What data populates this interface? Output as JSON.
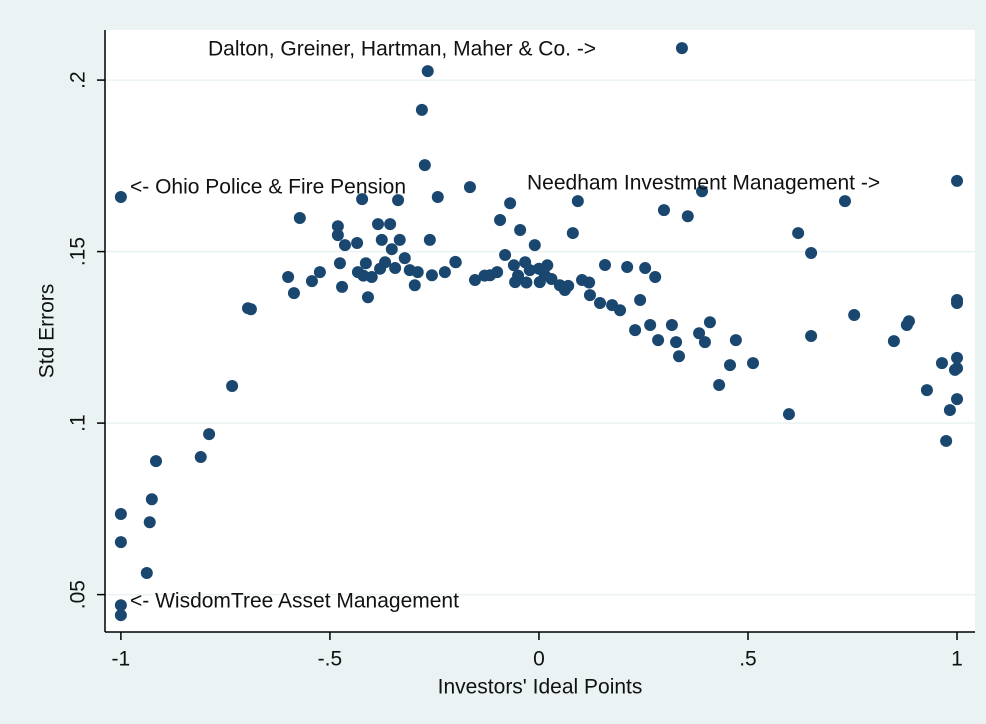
{
  "chart_data": {
    "type": "scatter",
    "x_label": "Investors' Ideal Points",
    "y_label": "Std Errors",
    "annotations": [
      "Dalton, Greiner, Hartman, Maher & Co. ->",
      "<- Ohio Police & Fire Pension",
      "Needham Investment Management ->",
      "<- WisdomTree Asset Management"
    ],
    "color": "#1a476f",
    "grid": true,
    "xlim": [
      -1.038,
      1.043
    ],
    "ylim": [
      0.0391,
      0.2146
    ],
    "xticks": [
      -1,
      {
        "value": -0.5,
        "label": "-.5"
      },
      0,
      {
        "value": 0.5,
        "label": ".5"
      },
      1
    ],
    "yticks": [
      {
        "value": 0.05,
        "label": ".05"
      },
      {
        "value": 0.1,
        "label": ".1"
      },
      {
        "value": 0.15,
        "label": ".15"
      },
      {
        "value": 0.2,
        "label": ".2"
      }
    ],
    "x": [
      -1,
      -1,
      -1,
      -1,
      -1,
      -0.938,
      -0.931,
      -0.926,
      -0.916,
      -0.809,
      -0.789,
      -0.734,
      -0.696,
      -0.689,
      -0.6,
      -0.586,
      -0.572,
      -0.543,
      -0.524,
      -0.481,
      -0.481,
      -0.476,
      -0.471,
      -0.464,
      -0.435,
      -0.433,
      -0.423,
      -0.414,
      -0.409,
      -0.4,
      -0.385,
      -0.376,
      -0.368,
      -0.356,
      -0.352,
      -0.344,
      -0.337,
      -0.333,
      -0.321,
      -0.309,
      -0.297,
      -0.28,
      -0.273,
      -0.266,
      -0.261,
      -0.256,
      -0.242,
      -0.225,
      -0.199,
      -0.165,
      -0.153,
      -0.117,
      -0.093,
      -0.081,
      -0.069,
      -0.057,
      -0.045,
      -0.033,
      -0.022,
      -0.01,
      0.002,
      0.014,
      0.05,
      0.062,
      0.081,
      0.093,
      0.103,
      0.122,
      0.146,
      0.158,
      0.175,
      0.194,
      0.211,
      0.23,
      0.242,
      0.254,
      0.266,
      0.278,
      0.285,
      0.299,
      0.318,
      0.328,
      0.335,
      0.342,
      0.356,
      0.383,
      0.39,
      0.397,
      0.409,
      0.431,
      0.457,
      0.471,
      0.512,
      0.598,
      0.62,
      0.651,
      0.651,
      0.732,
      0.754,
      0.849,
      0.88,
      0.885,
      0.928,
      0.964,
      0.974,
      0.983,
      0.995,
      1,
      1,
      1,
      1,
      1,
      1,
      -0.05,
      0,
      0.03,
      -0.1,
      0.07,
      -0.38,
      -0.2,
      -0.13,
      -0.03,
      0.02,
      -0.42,
      -0.29,
      -0.06,
      0.12
    ],
    "values": [
      0.1659,
      0.0735,
      0.0653,
      0.0469,
      0.044,
      0.0563,
      0.0711,
      0.0778,
      0.0889,
      0.0901,
      0.0968,
      0.1108,
      0.1335,
      0.1332,
      0.1426,
      0.1379,
      0.1598,
      0.1414,
      0.144,
      0.1574,
      0.1548,
      0.1466,
      0.1397,
      0.1519,
      0.1525,
      0.144,
      0.1653,
      0.1466,
      0.1367,
      0.1426,
      0.158,
      0.1534,
      0.1469,
      0.158,
      0.1507,
      0.1452,
      0.165,
      0.1534,
      0.1481,
      0.1446,
      0.1402,
      0.1913,
      0.1752,
      0.2026,
      0.1534,
      0.1431,
      0.1659,
      0.144,
      0.1469,
      0.1688,
      0.1417,
      0.1431,
      0.1592,
      0.149,
      0.1641,
      0.1411,
      0.1563,
      0.1469,
      0.1446,
      0.1519,
      0.1411,
      0.1431,
      0.1402,
      0.1388,
      0.1554,
      0.1647,
      0.1417,
      0.1373,
      0.135,
      0.1461,
      0.1344,
      0.1329,
      0.1455,
      0.1271,
      0.1359,
      0.1452,
      0.1286,
      0.1426,
      0.1242,
      0.1621,
      0.1286,
      0.1236,
      0.1195,
      0.2093,
      0.1603,
      0.1262,
      0.1676,
      0.1236,
      0.1294,
      0.1111,
      0.1169,
      0.1242,
      0.1175,
      0.1026,
      0.1554,
      0.1496,
      0.1254,
      0.1647,
      0.1315,
      0.1239,
      0.1286,
      0.1297,
      0.1096,
      0.1175,
      0.0948,
      0.1038,
      0.1155,
      0.1706,
      0.1359,
      0.135,
      0.119,
      0.116,
      0.107,
      0.143,
      0.145,
      0.142,
      0.144,
      0.14,
      0.145,
      0.147,
      0.143,
      0.141,
      0.146,
      0.143,
      0.144,
      0.146,
      0.141
    ]
  }
}
